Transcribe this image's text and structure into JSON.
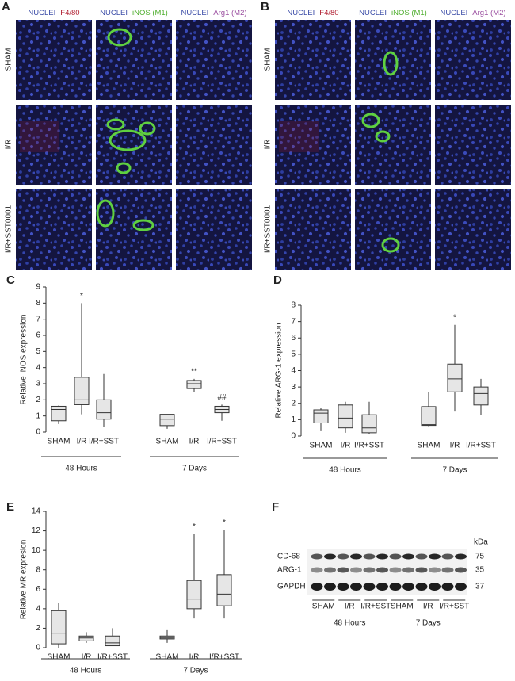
{
  "micrographs": [
    {
      "letter": "A",
      "columns": [
        [
          {
            "text": "NUCLEI",
            "color": "#3d4ea8"
          },
          {
            "text": "F4/80",
            "color": "#b01c2e"
          }
        ],
        [
          {
            "text": "NUCLEI",
            "color": "#3d4ea8"
          },
          {
            "text": "iNOS (M1)",
            "color": "#4fae2e"
          }
        ],
        [
          {
            "text": "NUCLEI",
            "color": "#3d4ea8"
          },
          {
            "text": "Arg1 (M2)",
            "color": "#9b4fa0"
          }
        ]
      ],
      "rows": [
        "SHAM",
        "I/R",
        "I/R+SST0001"
      ]
    },
    {
      "letter": "B",
      "columns": [
        [
          {
            "text": "NUCLEI",
            "color": "#3d4ea8"
          },
          {
            "text": "F4/80",
            "color": "#b01c2e"
          }
        ],
        [
          {
            "text": "NUCLEI",
            "color": "#3d4ea8"
          },
          {
            "text": "iNOS (M1)",
            "color": "#4fae2e"
          }
        ],
        [
          {
            "text": "NUCLEI",
            "color": "#3d4ea8"
          },
          {
            "text": "Arg1 (M2)",
            "color": "#9b4fa0"
          }
        ]
      ],
      "rows": [
        "SHAM",
        "I/R",
        "I/R+SST0001"
      ]
    }
  ],
  "chart_data": [
    {
      "type": "box",
      "letter": "C",
      "ylabel": "Relative iNOS expression",
      "categories": [
        "SHAM",
        "I/R",
        "I/R+SST",
        "SHAM",
        "I/R",
        "I/R+SST"
      ],
      "groups": [
        "48 Hours",
        "7 Days"
      ],
      "min": [
        0.5,
        1.1,
        0.3,
        0.2,
        2.5,
        0.7
      ],
      "q1": [
        0.7,
        1.7,
        0.8,
        0.4,
        2.7,
        1.2
      ],
      "median": [
        1.4,
        2.0,
        1.2,
        0.8,
        3.0,
        1.4
      ],
      "q3": [
        1.6,
        3.4,
        2.0,
        1.1,
        3.2,
        1.6
      ],
      "max": [
        1.65,
        8.0,
        3.6,
        1.1,
        3.3,
        1.7
      ],
      "annotations": [
        null,
        "*",
        null,
        null,
        "**",
        "##"
      ],
      "ylim": [
        0,
        9
      ],
      "yticks": [
        0,
        1,
        2,
        3,
        4,
        5,
        6,
        7,
        8,
        9
      ]
    },
    {
      "type": "box",
      "letter": "D",
      "ylabel": "Relative ARG-1 expression",
      "categories": [
        "SHAM",
        "I/R",
        "I/R+SST",
        "SHAM",
        "I/R",
        "I/R+SST"
      ],
      "groups": [
        "48 Hours",
        "7 Days"
      ],
      "min": [
        0.3,
        0.2,
        0.1,
        0.6,
        1.5,
        1.3
      ],
      "q1": [
        0.8,
        0.5,
        0.2,
        0.65,
        2.7,
        1.9
      ],
      "median": [
        1.4,
        1.1,
        0.5,
        0.7,
        3.5,
        2.6
      ],
      "q3": [
        1.6,
        1.9,
        1.3,
        1.8,
        4.4,
        3.0
      ],
      "max": [
        1.7,
        2.1,
        2.1,
        2.7,
        6.8,
        3.5
      ],
      "annotations": [
        null,
        null,
        null,
        null,
        "*",
        null
      ],
      "ylim": [
        0,
        8
      ],
      "yticks": [
        0,
        1,
        2,
        3,
        4,
        5,
        6,
        7,
        8
      ]
    },
    {
      "type": "box",
      "letter": "E",
      "ylabel": "Relative MR expresion",
      "categories": [
        "SHAM",
        "I/R",
        "I/R+SST",
        "SHAM",
        "I/R",
        "I/R+SST"
      ],
      "groups": [
        "48 Hours",
        "7 Days"
      ],
      "min": [
        0,
        0.5,
        0.2,
        0.5,
        3.0,
        3.0
      ],
      "q1": [
        0.4,
        0.7,
        0.2,
        0.9,
        4.0,
        4.3
      ],
      "median": [
        1.5,
        1.0,
        0.5,
        1.0,
        5.0,
        5.5
      ],
      "q3": [
        3.8,
        1.2,
        1.2,
        1.2,
        6.9,
        7.5
      ],
      "max": [
        4.6,
        1.6,
        2.0,
        1.8,
        11.7,
        12.1
      ],
      "annotations": [
        null,
        null,
        null,
        null,
        "*",
        "*"
      ],
      "ylim": [
        0,
        14
      ],
      "yticks": [
        0,
        2,
        4,
        6,
        8,
        10,
        12,
        14
      ]
    }
  ],
  "blot": {
    "letter": "F",
    "unit": "kDa",
    "bands": [
      {
        "name": "CD-68",
        "size": "75"
      },
      {
        "name": "ARG-1",
        "size": "35"
      },
      {
        "name": "GAPDH",
        "size": "37"
      }
    ],
    "lanes": [
      "SHAM",
      "I/R",
      "I/R+SST",
      "SHAM",
      "I/R",
      "I/R+SST"
    ],
    "groups": [
      "48 Hours",
      "7 Days"
    ]
  }
}
